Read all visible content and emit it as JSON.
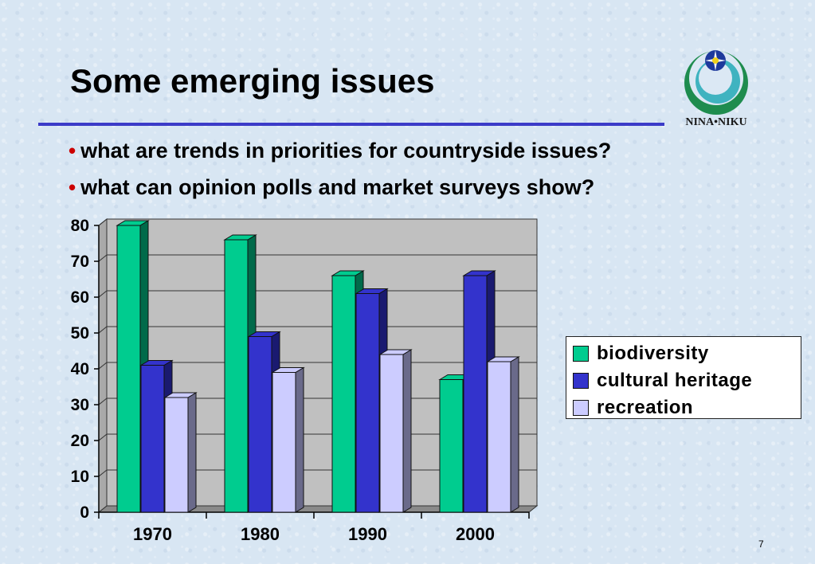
{
  "slide": {
    "title": "Some emerging issues",
    "logo_text": "NINA•NIKU",
    "bullets": [
      "what are trends in priorities for countryside issues?",
      "what can opinion polls and market surveys show?"
    ],
    "bullet_glyph": "•",
    "page_number": "7"
  },
  "colors": {
    "title_rule": "#3b3bc8",
    "bullet_dot": "#cc0000",
    "plot_background": "#c0c0c0"
  },
  "chart_data": {
    "type": "bar",
    "categories": [
      "1970",
      "1980",
      "1990",
      "2000"
    ],
    "series": [
      {
        "name": "biodiversity",
        "values": [
          80,
          76,
          66,
          37
        ],
        "color": "#00cc8f",
        "side_color": "#006a4a"
      },
      {
        "name": "cultural heritage",
        "values": [
          41,
          49,
          61,
          66
        ],
        "color": "#3333cc",
        "side_color": "#1a1a70"
      },
      {
        "name": "recreation",
        "values": [
          32,
          39,
          44,
          42
        ],
        "color": "#ccccff",
        "side_color": "#6a6a8a"
      }
    ],
    "y_ticks": [
      "0",
      "10",
      "20",
      "30",
      "40",
      "50",
      "60",
      "70",
      "80"
    ],
    "ylim": [
      0,
      80
    ],
    "style": "3d-clustered-column",
    "grid": true,
    "legend_position": "right"
  }
}
